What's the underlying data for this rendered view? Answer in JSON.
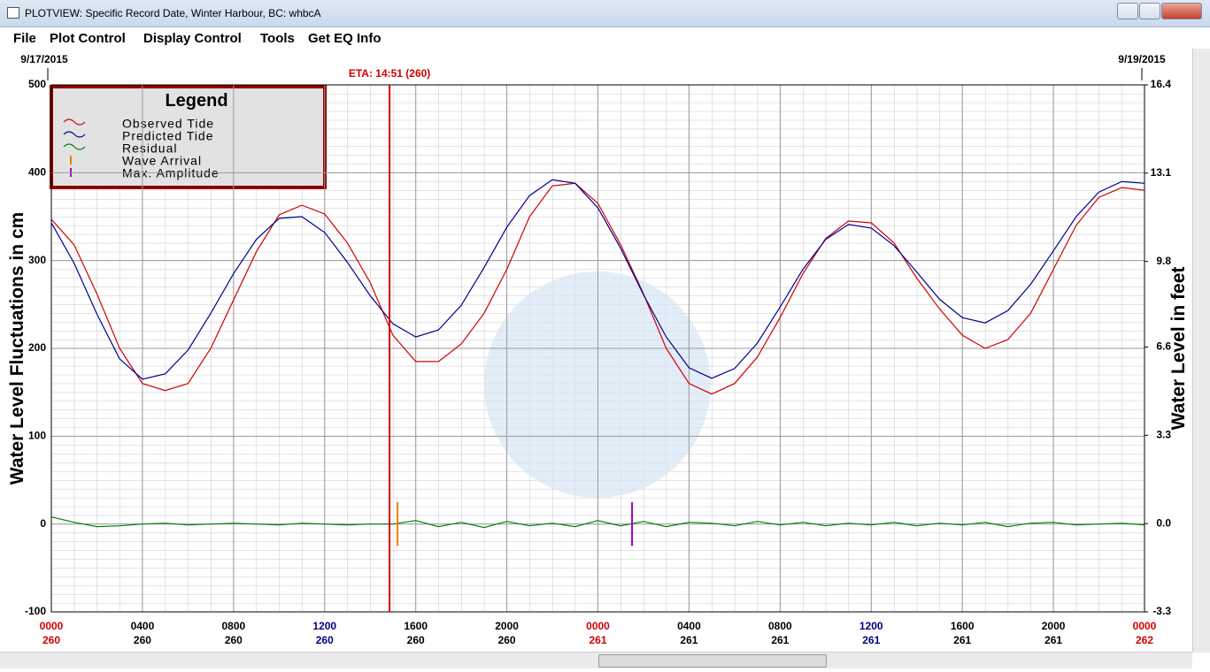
{
  "window": {
    "title": "PLOTVIEW: Specific Record Date, Winter Harbour, BC: whbcA",
    "menu": [
      "File",
      "Plot Control",
      "Display Control",
      "Tools",
      "Get EQ Info"
    ]
  },
  "chart_data": {
    "type": "line",
    "y_label": "Water Level Fluctuations in cm",
    "y2_label": "Water Level in feet",
    "start_date": "9/17/2015",
    "end_date": "9/19/2015",
    "legend_title": "Legend",
    "legend": "upper left",
    "grid": true,
    "x": [
      0,
      1,
      2,
      3,
      4,
      5,
      6,
      7,
      8,
      9,
      10,
      11,
      12,
      13,
      14,
      15,
      16,
      17,
      18,
      19,
      20,
      21,
      22,
      23,
      24,
      25,
      26,
      27,
      28,
      29,
      30,
      31,
      32,
      33,
      34,
      35,
      36,
      37,
      38,
      39,
      40,
      41,
      42,
      43,
      44,
      45,
      46,
      47,
      48
    ],
    "xlim": [
      0,
      48
    ],
    "xticks": [
      {
        "value": 0,
        "label": "0000"
      },
      {
        "value": 4,
        "label": "0400"
      },
      {
        "value": 8,
        "label": "0800"
      },
      {
        "value": 12,
        "label": "1200"
      },
      {
        "value": 16,
        "label": "1600"
      },
      {
        "value": 20,
        "label": "2000"
      },
      {
        "value": 24,
        "label": "0000"
      },
      {
        "value": 28,
        "label": "0400"
      },
      {
        "value": 32,
        "label": "0800"
      },
      {
        "value": 36,
        "label": "1200"
      },
      {
        "value": 40,
        "label": "1600"
      },
      {
        "value": 44,
        "label": "2000"
      },
      {
        "value": 48,
        "label": "0000"
      }
    ],
    "xtick_days": [
      "260",
      "260",
      "260",
      "260",
      "260",
      "260",
      "261",
      "261",
      "261",
      "261",
      "261",
      "261",
      "262"
    ],
    "xtick_colors": [
      "#d00000",
      "#000000",
      "#000000",
      "#000080",
      "#000000",
      "#000000",
      "#d00000",
      "#000000",
      "#000000",
      "#000080",
      "#000000",
      "#000000",
      "#d00000"
    ],
    "ylim": [
      -100,
      500
    ],
    "yticks": [
      -100,
      0,
      100,
      200,
      300,
      400,
      500
    ],
    "y2lim": [
      -3.3,
      16.4
    ],
    "y2ticks": [
      -3.3,
      {
        "value": 0,
        "label": "0.0"
      },
      3.3,
      6.6,
      9.8,
      13.1,
      16.4
    ],
    "series": [
      {
        "name": "Observed Tide",
        "color": "#d00000",
        "values": [
          347,
          318,
          262,
          200,
          160,
          152,
          160,
          200,
          255,
          310,
          352,
          363,
          353,
          320,
          275,
          215,
          185,
          185,
          205,
          240,
          290,
          350,
          385,
          388,
          365,
          318,
          262,
          200,
          160,
          148,
          160,
          190,
          235,
          285,
          325,
          345,
          343,
          320,
          280,
          245,
          215,
          200,
          210,
          240,
          290,
          340,
          372,
          383,
          380
        ]
      },
      {
        "name": "Predicted Tide",
        "color": "#000090",
        "values": [
          343,
          297,
          239,
          188,
          165,
          171,
          198,
          240,
          285,
          324,
          348,
          350,
          332,
          298,
          260,
          228,
          213,
          221,
          249,
          292,
          338,
          374,
          392,
          388,
          360,
          314,
          261,
          213,
          178,
          166,
          177,
          206,
          247,
          290,
          324,
          341,
          337,
          317,
          287,
          256,
          235,
          229,
          243,
          273,
          311,
          350,
          378,
          390,
          388
        ]
      },
      {
        "name": "Residual",
        "color": "#008000",
        "values": [
          8,
          2,
          -3,
          -2,
          0,
          1,
          -1,
          0,
          1,
          0,
          -1,
          1,
          0,
          -1,
          0,
          0,
          4,
          -3,
          2,
          -4,
          3,
          -2,
          1,
          -3,
          4,
          -2,
          3,
          -3,
          2,
          1,
          -2,
          3,
          -1,
          2,
          -2,
          1,
          -1,
          2,
          -2,
          1,
          -1,
          2,
          -3,
          1,
          2,
          -1,
          0,
          1,
          -1
        ]
      }
    ],
    "eta": {
      "label": "ETA: 14:51 (260)",
      "x": 14.85,
      "color": "#d00000"
    },
    "wave_arrival": {
      "name": "Wave Arrival",
      "x": 15.2,
      "color": "#f08000"
    },
    "max_amplitude": {
      "name": "Max. Amplitude",
      "x": 25.5,
      "color": "#a000c0"
    }
  }
}
